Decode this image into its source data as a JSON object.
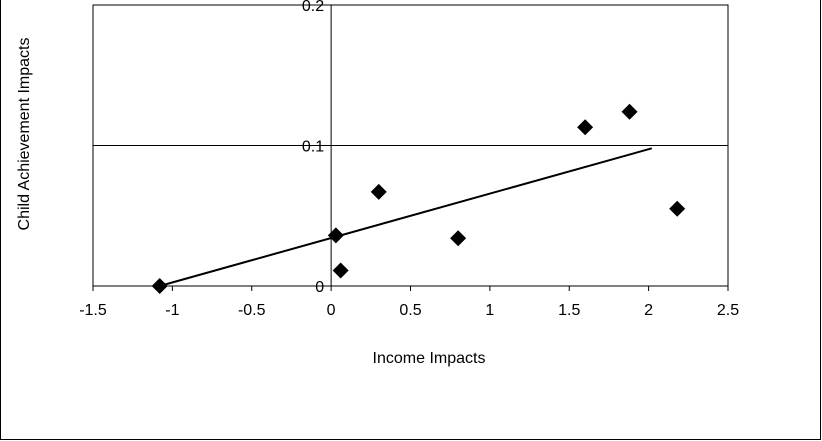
{
  "chart_data": {
    "type": "scatter",
    "title": "",
    "xlabel": "Income Impacts",
    "ylabel": "Child Achievement Impacts",
    "xlim": [
      -1.5,
      2.5
    ],
    "ylim": [
      0,
      0.2
    ],
    "x_ticks": [
      "-1.5",
      "-1",
      "-0.5",
      "0",
      "0.5",
      "1",
      "1.5",
      "2",
      "2.5"
    ],
    "y_ticks": [
      "0",
      "0.1",
      "0.2"
    ],
    "grid": "horizontal gridlines at 0.1 and 0.2; axes cross at x=0",
    "legend": "none",
    "marker": "diamond",
    "marker_color": "#000000",
    "points": [
      {
        "x": -1.08,
        "y": 0.0
      },
      {
        "x": 0.03,
        "y": 0.036
      },
      {
        "x": 0.06,
        "y": 0.011
      },
      {
        "x": 0.3,
        "y": 0.067
      },
      {
        "x": 0.8,
        "y": 0.034
      },
      {
        "x": 1.6,
        "y": 0.113
      },
      {
        "x": 1.88,
        "y": 0.124
      },
      {
        "x": 2.18,
        "y": 0.055
      }
    ],
    "trendline": {
      "x1": -1.08,
      "y1": 0.0,
      "x2": 2.02,
      "y2": 0.098
    }
  }
}
